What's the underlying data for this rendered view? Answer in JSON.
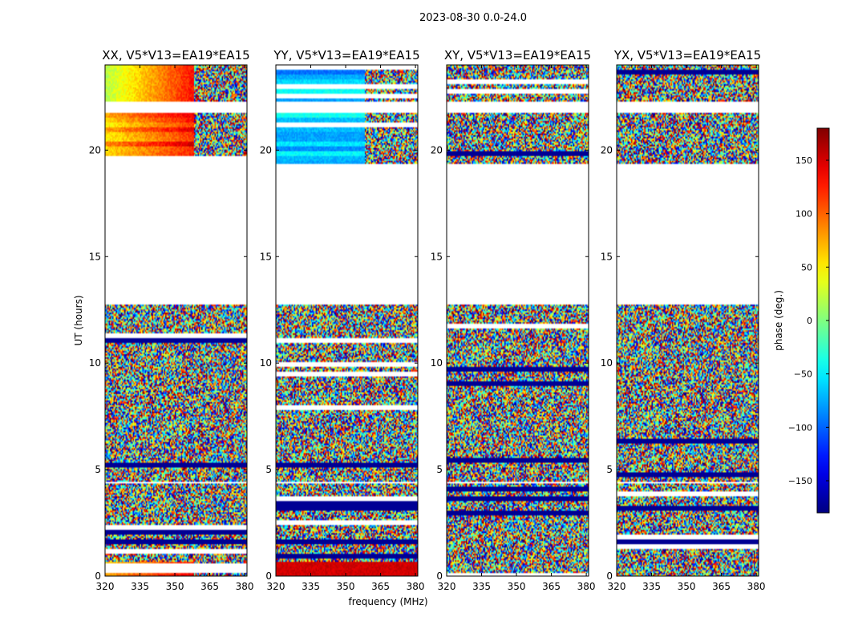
{
  "chart_data": {
    "type": "heatmap",
    "suptitle": "2023-08-30 0.0-24.0",
    "xlabel": "frequency (MHz)",
    "ylabel": "UT (hours)",
    "xlim": [
      320,
      381
    ],
    "ylim": [
      0,
      24
    ],
    "xticks": [
      "320",
      "335",
      "350",
      "365",
      "380"
    ],
    "xtick_values": [
      320,
      335,
      350,
      365,
      380
    ],
    "yticks": [
      "0",
      "5",
      "10",
      "15",
      "20"
    ],
    "ytick_values": [
      0,
      5,
      10,
      15,
      20
    ],
    "panels": [
      {
        "title": "XX, V5*V13=EA19*EA15",
        "mode": "coherent"
      },
      {
        "title": "YY, V5*V13=EA19*EA15",
        "mode": "coherent_blue"
      },
      {
        "title": "XY, V5*V13=EA19*EA15",
        "mode": "noise"
      },
      {
        "title": "YX, V5*V13=EA19*EA15",
        "mode": "noise"
      }
    ],
    "data_ranges_hours": [
      [
        0.0,
        4.4
      ],
      [
        4.5,
        12.8
      ],
      [
        19.4,
        21.8
      ],
      [
        22.3,
        24.0
      ]
    ],
    "colorbar": {
      "label": "phase (deg.)",
      "range": [
        -180,
        180
      ],
      "tick_values": [
        150,
        100,
        50,
        0,
        -50,
        -100,
        -150
      ],
      "tick_labels": [
        "150",
        "100",
        "50",
        "0",
        "−50",
        "−100",
        "−150"
      ],
      "colormap": "jet"
    }
  }
}
